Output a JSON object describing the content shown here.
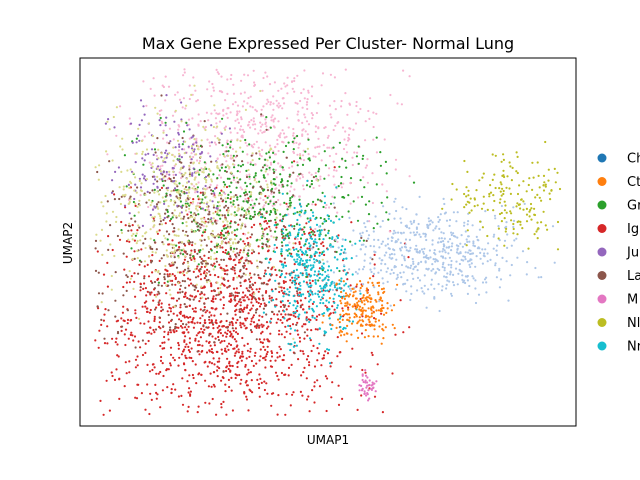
{
  "chart_data": {
    "type": "scatter",
    "title": "Max Gene Expressed Per Cluster- Normal Lung",
    "xlabel": "UMAP1",
    "ylabel": "UMAP2",
    "xlim": [
      0,
      100
    ],
    "ylim": [
      0,
      100
    ],
    "grid": false,
    "legend": {
      "placement": "right, clipped at image edge",
      "entries": [
        {
          "label": "Ch",
          "color": "#1f77b4"
        },
        {
          "label": "Ct",
          "color": "#ff7f0e"
        },
        {
          "label": "Gr",
          "color": "#2ca02c"
        },
        {
          "label": "Ig",
          "color": "#d62728"
        },
        {
          "label": "Ju",
          "color": "#9467bd"
        },
        {
          "label": "La",
          "color": "#8c564b"
        },
        {
          "label": "M",
          "color": "#e377c2"
        },
        {
          "label": "Nl",
          "color": "#bcbd22"
        },
        {
          "label": "Nr",
          "color": "#17becf"
        }
      ]
    },
    "series": [
      {
        "color": "#d62728",
        "x": 30,
        "y": 30,
        "spread_x": 13,
        "spread_y": 14
      },
      {
        "color": "#f7b6d2",
        "x": 37,
        "y": 78,
        "spread_x": 12,
        "spread_y": 12
      },
      {
        "color": "#2ca02c",
        "x": 37,
        "y": 62,
        "spread_x": 12,
        "spread_y": 9
      },
      {
        "color": "#8c564b",
        "x": 25,
        "y": 50,
        "spread_x": 12,
        "spread_y": 14
      },
      {
        "color": "#9467bd",
        "x": 18,
        "y": 72,
        "spread_x": 6,
        "spread_y": 8
      },
      {
        "color": "#dbdb8d",
        "x": 22,
        "y": 60,
        "spread_x": 9,
        "spread_y": 12
      },
      {
        "color": "#17becf",
        "x": 47,
        "y": 42,
        "spread_x": 4,
        "spread_y": 9
      },
      {
        "color": "#ff7f0e",
        "x": 57,
        "y": 32,
        "spread_x": 3,
        "spread_y": 4
      },
      {
        "color": "#aec7e8",
        "x": 71,
        "y": 47,
        "spread_x": 9,
        "spread_y": 6
      },
      {
        "color": "#bcbd22",
        "x": 88,
        "y": 62,
        "spread_x": 6,
        "spread_y": 6
      },
      {
        "color": "#e377c2",
        "x": 58,
        "y": 11,
        "spread_x": 1,
        "spread_y": 2
      }
    ]
  }
}
